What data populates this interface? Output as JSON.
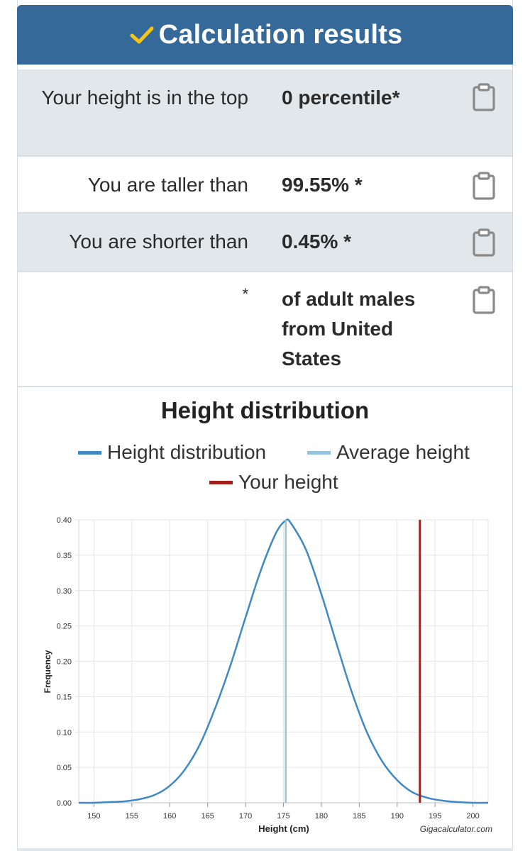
{
  "header": {
    "title": "Calculation results",
    "check_color": "#f5c518",
    "background_color": "#34699a"
  },
  "results": [
    {
      "label": "Your height is in the top",
      "value": "0 percentile*",
      "shaded": true
    },
    {
      "label": "You are taller than",
      "value": "99.55% *",
      "shaded": false
    },
    {
      "label": "You are shorter than",
      "value": "0.45% *",
      "shaded": true
    },
    {
      "label": "*",
      "value": "of adult males from United States",
      "shaded": false
    }
  ],
  "clipboard_icon": "clipboard-icon",
  "chart": {
    "title": "Height distribution",
    "legend": [
      {
        "label": "Height distribution",
        "color": "#3f88c5"
      },
      {
        "label": "Average height",
        "color": "#93c4e0"
      },
      {
        "label": "Your height",
        "color": "#a31f1a"
      }
    ],
    "credit": "Gigacalculator.com"
  },
  "chart_data": {
    "type": "line",
    "title": "Height distribution",
    "xlabel": "Height (cm)",
    "ylabel": "Frequency",
    "xlim": [
      148,
      202
    ],
    "ylim": [
      0,
      0.4
    ],
    "x_ticks": [
      150,
      155,
      160,
      165,
      170,
      175,
      180,
      185,
      190,
      195,
      200
    ],
    "y_ticks": [
      "0.00",
      "0.05",
      "0.10",
      "0.15",
      "0.20",
      "0.25",
      "0.30",
      "0.35",
      "0.40"
    ],
    "grid": true,
    "series": [
      {
        "name": "Height distribution",
        "color": "#3f88c5",
        "x": [
          148,
          150,
          152,
          154,
          156,
          158,
          160,
          162,
          164,
          166,
          168,
          170,
          172,
          174,
          175.3,
          176,
          178,
          180,
          182,
          184,
          186,
          188,
          190,
          192,
          194,
          196,
          198,
          200,
          202
        ],
        "y": [
          0.0,
          0.0,
          0.001,
          0.002,
          0.005,
          0.011,
          0.024,
          0.047,
          0.083,
          0.134,
          0.194,
          0.262,
          0.328,
          0.381,
          0.399,
          0.395,
          0.357,
          0.295,
          0.225,
          0.157,
          0.1,
          0.059,
          0.032,
          0.015,
          0.007,
          0.003,
          0.001,
          0.0,
          0.0
        ]
      },
      {
        "name": "Average height",
        "color": "#93c4e0",
        "x": [
          175.3,
          175.3
        ],
        "y": [
          0,
          0.4
        ]
      },
      {
        "name": "Your height",
        "color": "#a31f1a",
        "x": [
          193,
          193
        ],
        "y": [
          0,
          0.4
        ]
      }
    ]
  }
}
